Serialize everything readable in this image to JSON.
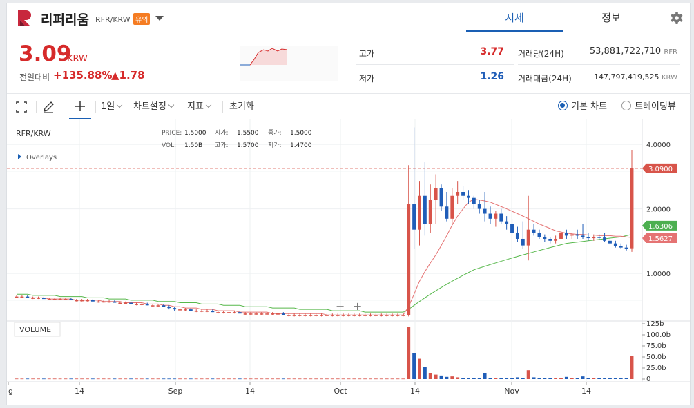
{
  "header": {
    "coin_name": "리퍼리움",
    "pair": "RFR/KRW",
    "warning_badge": "유의",
    "tabs": [
      {
        "label": "시세"
      },
      {
        "label": "정보"
      }
    ]
  },
  "summary": {
    "price": "3.09",
    "price_unit": "KRW",
    "change_label": "전일대비",
    "change_pct": "+135.88%",
    "change_abs": "▲1.78",
    "high_label": "고가",
    "high_value": "3.77",
    "low_label": "저가",
    "low_value": "1.26",
    "volume_label": "거래량(24H)",
    "volume_value": "53,881,722,710",
    "volume_unit": "RFR",
    "amount_label": "거래대금(24H)",
    "amount_value": "147,797,419,525",
    "amount_unit": "KRW"
  },
  "toolbar": {
    "interval": "1일",
    "chart_settings": "차트설정",
    "indicators": "지표",
    "reset": "초기화",
    "basic_chart": "기본 차트",
    "tradingview": "트레이딩뷰"
  },
  "colors": {
    "up": "#d8544a",
    "down": "#1f5db8",
    "ma_red": "#e57373",
    "ma_green": "#57b84b",
    "accent": "#1a5fb4"
  },
  "chart_data": {
    "type": "candlestick",
    "symbol": "RFR/KRW",
    "overlays_label": "Overlays",
    "info": {
      "price_label": "PRICE:",
      "price_value": "1.5000",
      "open_label": "시가:",
      "open_value": "1.5500",
      "close_label": "종가:",
      "close_value": "1.5000",
      "vol_label": "VOL:",
      "vol_value": "1.50B",
      "high_label": "고가:",
      "high_value": "1.5700",
      "low_label": "저가:",
      "low_value": "1.4700"
    },
    "x_ticks": [
      "g",
      "14",
      "Sep",
      "14",
      "Oct",
      "14",
      "Nov",
      "14"
    ],
    "y_ticks": [
      "4.0000",
      "2.0000",
      "1.0000"
    ],
    "y_ticks_values": [
      4.0,
      2.0,
      1.0
    ],
    "y_scale": "log",
    "ylim": [
      0.6,
      5.0
    ],
    "current_price_tag": "3.0900",
    "ma_red_tag": "1.5627",
    "ma_green_tag": "1.6306",
    "volume_label": "VOLUME",
    "volume_ticks": [
      "125b",
      "100.0b",
      "75.0b",
      "50.0b",
      "25.0b",
      "0"
    ],
    "volume_ticks_values": [
      125,
      100,
      75,
      50,
      25,
      0
    ],
    "candles": [
      [
        0.78,
        0.79,
        0.77,
        0.78,
        1
      ],
      [
        0.78,
        0.79,
        0.77,
        0.78,
        1
      ],
      [
        0.78,
        0.79,
        0.77,
        0.77,
        1
      ],
      [
        0.77,
        0.78,
        0.76,
        0.77,
        1
      ],
      [
        0.77,
        0.78,
        0.76,
        0.77,
        1
      ],
      [
        0.77,
        0.78,
        0.76,
        0.76,
        1
      ],
      [
        0.76,
        0.77,
        0.75,
        0.76,
        1
      ],
      [
        0.76,
        0.77,
        0.75,
        0.76,
        1
      ],
      [
        0.76,
        0.77,
        0.75,
        0.76,
        1
      ],
      [
        0.76,
        0.77,
        0.75,
        0.76,
        1
      ],
      [
        0.76,
        0.77,
        0.75,
        0.75,
        1
      ],
      [
        0.75,
        0.76,
        0.74,
        0.75,
        1
      ],
      [
        0.75,
        0.76,
        0.74,
        0.75,
        1
      ],
      [
        0.75,
        0.76,
        0.74,
        0.75,
        1
      ],
      [
        0.75,
        0.76,
        0.74,
        0.74,
        1
      ],
      [
        0.74,
        0.75,
        0.73,
        0.74,
        1
      ],
      [
        0.74,
        0.75,
        0.73,
        0.74,
        1
      ],
      [
        0.74,
        0.75,
        0.73,
        0.74,
        1
      ],
      [
        0.74,
        0.75,
        0.73,
        0.73,
        1
      ],
      [
        0.73,
        0.74,
        0.72,
        0.73,
        1
      ],
      [
        0.73,
        0.74,
        0.72,
        0.73,
        1
      ],
      [
        0.73,
        0.74,
        0.72,
        0.72,
        1
      ],
      [
        0.72,
        0.73,
        0.71,
        0.72,
        1
      ],
      [
        0.72,
        0.73,
        0.71,
        0.72,
        1
      ],
      [
        0.72,
        0.73,
        0.71,
        0.71,
        1
      ],
      [
        0.71,
        0.72,
        0.7,
        0.71,
        1
      ],
      [
        0.71,
        0.72,
        0.7,
        0.71,
        1
      ],
      [
        0.71,
        0.72,
        0.7,
        0.7,
        1
      ],
      [
        0.7,
        0.71,
        0.68,
        0.69,
        1
      ],
      [
        0.69,
        0.7,
        0.67,
        0.68,
        1
      ],
      [
        0.68,
        0.69,
        0.67,
        0.68,
        1
      ],
      [
        0.68,
        0.69,
        0.67,
        0.68,
        1
      ],
      [
        0.68,
        0.69,
        0.67,
        0.67,
        1
      ],
      [
        0.67,
        0.68,
        0.66,
        0.67,
        1
      ],
      [
        0.67,
        0.68,
        0.66,
        0.67,
        1
      ],
      [
        0.67,
        0.68,
        0.66,
        0.67,
        1
      ],
      [
        0.67,
        0.68,
        0.66,
        0.66,
        1
      ],
      [
        0.66,
        0.67,
        0.65,
        0.66,
        1
      ],
      [
        0.66,
        0.67,
        0.65,
        0.66,
        1
      ],
      [
        0.66,
        0.67,
        0.65,
        0.66,
        1
      ],
      [
        0.66,
        0.67,
        0.65,
        0.66,
        1
      ],
      [
        0.66,
        0.67,
        0.65,
        0.65,
        1
      ],
      [
        0.65,
        0.66,
        0.64,
        0.65,
        1
      ],
      [
        0.65,
        0.66,
        0.64,
        0.65,
        1
      ],
      [
        0.65,
        0.66,
        0.64,
        0.65,
        1
      ],
      [
        0.65,
        0.66,
        0.64,
        0.65,
        1
      ],
      [
        0.65,
        0.66,
        0.64,
        0.65,
        1
      ],
      [
        0.65,
        0.66,
        0.64,
        0.65,
        1
      ],
      [
        0.65,
        0.66,
        0.64,
        0.65,
        1
      ],
      [
        0.65,
        0.66,
        0.64,
        0.64,
        1
      ],
      [
        0.64,
        0.65,
        0.63,
        0.64,
        1
      ],
      [
        0.64,
        0.65,
        0.63,
        0.64,
        1
      ],
      [
        0.64,
        0.65,
        0.63,
        0.64,
        1
      ],
      [
        0.64,
        0.65,
        0.63,
        0.64,
        1
      ],
      [
        0.64,
        0.65,
        0.63,
        0.64,
        1
      ],
      [
        0.64,
        0.65,
        0.63,
        0.64,
        1
      ],
      [
        0.64,
        0.65,
        0.63,
        0.64,
        1
      ],
      [
        0.64,
        0.65,
        0.63,
        0.64,
        1
      ],
      [
        0.64,
        0.65,
        0.63,
        0.64,
        1
      ],
      [
        0.64,
        0.65,
        0.63,
        0.64,
        1
      ],
      [
        0.64,
        0.65,
        0.63,
        0.64,
        1
      ],
      [
        0.64,
        0.65,
        0.63,
        0.64,
        1
      ],
      [
        0.64,
        0.65,
        0.63,
        0.64,
        1
      ],
      [
        0.64,
        0.65,
        0.63,
        0.64,
        1
      ],
      [
        0.64,
        0.65,
        0.63,
        0.64,
        1
      ],
      [
        0.64,
        0.65,
        0.63,
        0.64,
        1
      ],
      [
        0.64,
        0.65,
        0.63,
        0.64,
        1
      ],
      [
        0.64,
        0.65,
        0.63,
        0.64,
        1
      ],
      [
        0.64,
        0.65,
        0.63,
        0.64,
        1
      ],
      [
        0.64,
        0.65,
        0.63,
        0.64,
        1
      ],
      [
        0.64,
        0.65,
        0.63,
        0.64,
        1
      ],
      [
        0.64,
        0.65,
        0.63,
        0.64,
        1
      ],
      [
        0.64,
        3.2,
        0.63,
        2.1,
        118
      ],
      [
        2.1,
        4.8,
        1.3,
        1.6,
        58
      ],
      [
        1.6,
        2.7,
        1.35,
        2.3,
        46
      ],
      [
        2.3,
        3.3,
        1.5,
        1.7,
        28
      ],
      [
        1.7,
        2.6,
        1.55,
        2.2,
        14
      ],
      [
        2.2,
        2.9,
        1.7,
        2.5,
        10
      ],
      [
        2.5,
        2.6,
        1.95,
        2.05,
        8
      ],
      [
        2.05,
        2.4,
        1.75,
        1.8,
        5
      ],
      [
        1.8,
        2.5,
        1.7,
        2.3,
        6
      ],
      [
        2.3,
        2.7,
        2.1,
        2.4,
        4
      ],
      [
        2.4,
        2.55,
        2.2,
        2.3,
        3
      ],
      [
        2.3,
        2.45,
        2.1,
        2.25,
        3
      ],
      [
        2.25,
        2.3,
        2.0,
        2.1,
        2
      ],
      [
        2.1,
        2.2,
        1.9,
        2.0,
        2
      ],
      [
        2.0,
        2.4,
        1.75,
        1.9,
        14
      ],
      [
        1.9,
        2.05,
        1.7,
        1.8,
        3
      ],
      [
        1.8,
        1.95,
        1.65,
        1.9,
        2
      ],
      [
        1.9,
        2.0,
        1.7,
        1.75,
        2
      ],
      [
        1.75,
        1.85,
        1.6,
        1.7,
        2
      ],
      [
        1.7,
        1.8,
        1.5,
        1.55,
        3
      ],
      [
        1.55,
        1.65,
        1.4,
        1.45,
        4
      ],
      [
        1.45,
        1.75,
        1.3,
        1.35,
        3
      ],
      [
        1.35,
        2.3,
        1.15,
        1.6,
        20
      ],
      [
        1.6,
        1.7,
        1.5,
        1.55,
        4
      ],
      [
        1.55,
        1.6,
        1.45,
        1.48,
        3
      ],
      [
        1.48,
        1.52,
        1.4,
        1.45,
        2
      ],
      [
        1.45,
        1.48,
        1.38,
        1.42,
        2
      ],
      [
        1.42,
        1.5,
        1.38,
        1.45,
        2
      ],
      [
        1.45,
        1.75,
        1.4,
        1.55,
        3
      ],
      [
        1.55,
        1.6,
        1.45,
        1.5,
        5
      ],
      [
        1.5,
        1.55,
        1.45,
        1.52,
        3
      ],
      [
        1.52,
        1.6,
        1.45,
        1.5,
        2
      ],
      [
        1.5,
        1.7,
        1.45,
        1.48,
        6
      ],
      [
        1.48,
        1.55,
        1.42,
        1.46,
        2
      ],
      [
        1.46,
        1.52,
        1.42,
        1.48,
        2
      ],
      [
        1.48,
        1.52,
        1.44,
        1.47,
        2
      ],
      [
        1.47,
        1.55,
        1.4,
        1.42,
        3
      ],
      [
        1.42,
        1.48,
        1.36,
        1.38,
        2
      ],
      [
        1.38,
        1.42,
        1.32,
        1.34,
        2
      ],
      [
        1.34,
        1.38,
        1.3,
        1.32,
        2
      ],
      [
        1.32,
        1.36,
        1.28,
        1.31,
        2
      ],
      [
        1.31,
        3.77,
        1.26,
        3.09,
        52
      ]
    ],
    "ma_red": [
      0.77,
      0.77,
      0.77,
      0.77,
      0.77,
      0.77,
      0.76,
      0.76,
      0.76,
      0.76,
      0.76,
      0.75,
      0.75,
      0.75,
      0.75,
      0.75,
      0.74,
      0.74,
      0.74,
      0.74,
      0.73,
      0.73,
      0.73,
      0.73,
      0.72,
      0.72,
      0.72,
      0.71,
      0.71,
      0.7,
      0.7,
      0.69,
      0.69,
      0.69,
      0.68,
      0.68,
      0.68,
      0.67,
      0.67,
      0.67,
      0.67,
      0.66,
      0.66,
      0.66,
      0.66,
      0.66,
      0.66,
      0.65,
      0.65,
      0.65,
      0.65,
      0.65,
      0.65,
      0.65,
      0.65,
      0.65,
      0.65,
      0.64,
      0.64,
      0.64,
      0.64,
      0.64,
      0.64,
      0.64,
      0.64,
      0.64,
      0.64,
      0.64,
      0.64,
      0.64,
      0.64,
      0.64,
      0.7,
      0.8,
      0.92,
      1.02,
      1.12,
      1.22,
      1.35,
      1.5,
      1.68,
      1.85,
      2.0,
      2.15,
      2.22,
      2.2,
      2.18,
      2.15,
      2.1,
      2.05,
      2.0,
      1.95,
      1.9,
      1.85,
      1.8,
      1.75,
      1.7,
      1.66,
      1.62,
      1.58,
      1.56,
      1.54,
      1.53,
      1.52,
      1.52,
      1.51,
      1.51,
      1.5,
      1.5,
      1.5,
      1.49,
      1.49,
      1.48,
      1.47,
      1.46,
      1.46,
      1.55
    ],
    "ma_green": [
      0.8,
      0.8,
      0.8,
      0.79,
      0.79,
      0.79,
      0.79,
      0.79,
      0.78,
      0.78,
      0.78,
      0.78,
      0.78,
      0.77,
      0.77,
      0.77,
      0.77,
      0.76,
      0.76,
      0.76,
      0.76,
      0.75,
      0.75,
      0.75,
      0.75,
      0.75,
      0.74,
      0.74,
      0.74,
      0.74,
      0.73,
      0.73,
      0.73,
      0.73,
      0.72,
      0.72,
      0.72,
      0.72,
      0.71,
      0.71,
      0.71,
      0.71,
      0.7,
      0.7,
      0.7,
      0.7,
      0.7,
      0.69,
      0.69,
      0.69,
      0.69,
      0.69,
      0.68,
      0.68,
      0.68,
      0.68,
      0.68,
      0.68,
      0.67,
      0.67,
      0.67,
      0.67,
      0.67,
      0.67,
      0.66,
      0.66,
      0.66,
      0.66,
      0.66,
      0.66,
      0.66,
      0.66,
      0.68,
      0.71,
      0.74,
      0.77,
      0.8,
      0.83,
      0.86,
      0.89,
      0.92,
      0.95,
      0.98,
      1.01,
      1.04,
      1.06,
      1.08,
      1.1,
      1.12,
      1.14,
      1.16,
      1.18,
      1.2,
      1.22,
      1.24,
      1.26,
      1.28,
      1.3,
      1.32,
      1.34,
      1.36,
      1.38,
      1.39,
      1.4,
      1.41,
      1.42,
      1.43,
      1.44,
      1.45,
      1.46,
      1.47,
      1.48,
      1.5,
      1.52,
      1.54,
      1.56,
      1.6
    ]
  }
}
